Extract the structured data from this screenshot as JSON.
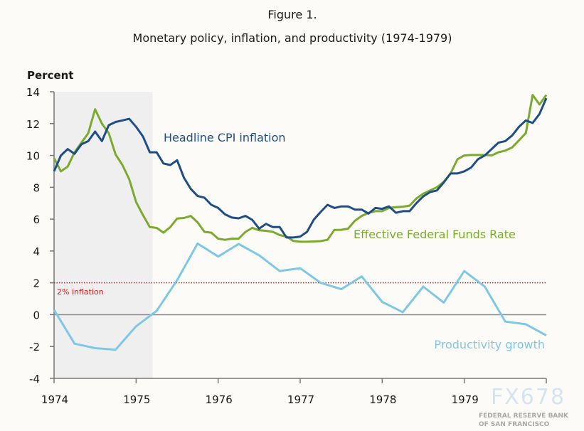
{
  "chart_data": {
    "type": "line",
    "title": "Figure 1.",
    "subtitle": "Monetary policy, inflation, and productivity (1974-1979)",
    "ylabel": "Percent",
    "xlabel": "",
    "xlim": [
      1974,
      1980
    ],
    "ylim": [
      -4,
      14
    ],
    "x_ticks": [
      1974,
      1975,
      1976,
      1977,
      1978,
      1979
    ],
    "y_ticks": [
      -4,
      -2,
      0,
      2,
      4,
      6,
      8,
      10,
      12,
      14
    ],
    "grid": false,
    "legend": "inline labels",
    "shaded_period": {
      "start": 1974.0,
      "end": 1975.2,
      "color": "#efeff0"
    },
    "reference_line": {
      "value": 2,
      "label": "2% inflation",
      "color": "#cc1f1f",
      "style": "dotted"
    },
    "zero_line": {
      "value": 0,
      "color": "#8a8a8a"
    },
    "series": [
      {
        "name": "Headline CPI inflation",
        "color": "#1f4e85",
        "frequency": "monthly",
        "x_start": 1974.0,
        "values": [
          9.0,
          10.0,
          10.4,
          10.1,
          10.7,
          10.9,
          11.5,
          10.9,
          11.9,
          12.1,
          12.2,
          12.3,
          11.8,
          11.2,
          10.2,
          10.2,
          9.5,
          9.4,
          9.7,
          8.6,
          7.9,
          7.45,
          7.35,
          6.9,
          6.7,
          6.3,
          6.1,
          6.05,
          6.2,
          5.95,
          5.4,
          5.7,
          5.5,
          5.5,
          4.85,
          4.85,
          4.9,
          5.2,
          5.97,
          6.45,
          6.9,
          6.7,
          6.8,
          6.8,
          6.6,
          6.6,
          6.35,
          6.7,
          6.65,
          6.8,
          6.4,
          6.5,
          6.5,
          7.0,
          7.43,
          7.7,
          7.8,
          8.3,
          8.87,
          8.87,
          9.0,
          9.24,
          9.76,
          10.0,
          10.4,
          10.8,
          10.9,
          11.25,
          11.8,
          12.2,
          12.04,
          12.6,
          13.6
        ]
      },
      {
        "name": "Effective Federal Funds Rate",
        "color": "#7aab2f",
        "frequency": "monthly",
        "x_start": 1974.0,
        "values": [
          9.83,
          9.0,
          9.3,
          10.2,
          10.8,
          11.4,
          12.9,
          12.0,
          11.4,
          10.06,
          9.4,
          8.5,
          7.08,
          6.26,
          5.5,
          5.45,
          5.15,
          5.5,
          6.04,
          6.07,
          6.2,
          5.8,
          5.2,
          5.15,
          4.77,
          4.7,
          4.77,
          4.77,
          5.2,
          5.45,
          5.3,
          5.27,
          5.2,
          5.0,
          4.9,
          4.63,
          4.58,
          4.58,
          4.6,
          4.62,
          4.7,
          5.32,
          5.33,
          5.4,
          5.9,
          6.2,
          6.4,
          6.5,
          6.5,
          6.7,
          6.75,
          6.78,
          6.85,
          7.3,
          7.6,
          7.8,
          8.0,
          8.34,
          8.87,
          9.76,
          10.0,
          10.03,
          10.03,
          10.03,
          10.0,
          10.2,
          10.3,
          10.5,
          10.95,
          11.4,
          13.8,
          13.2,
          13.8
        ]
      },
      {
        "name": "Productivity growth",
        "color": "#7ec8e3",
        "frequency": "quarterly",
        "x_start": 1974.0,
        "values": [
          0.3,
          -1.82,
          -2.1,
          -2.2,
          -0.73,
          0.24,
          2.17,
          4.47,
          3.65,
          4.44,
          3.73,
          2.74,
          2.92,
          2.0,
          1.6,
          2.4,
          0.8,
          0.16,
          1.76,
          0.76,
          2.74,
          1.76,
          -0.43,
          -0.6,
          -1.3
        ]
      }
    ]
  },
  "watermark": {
    "text": "FX678",
    "source_line1": "FEDERAL RESERVE BANK",
    "source_line2": "OF SAN FRANCISCO"
  }
}
